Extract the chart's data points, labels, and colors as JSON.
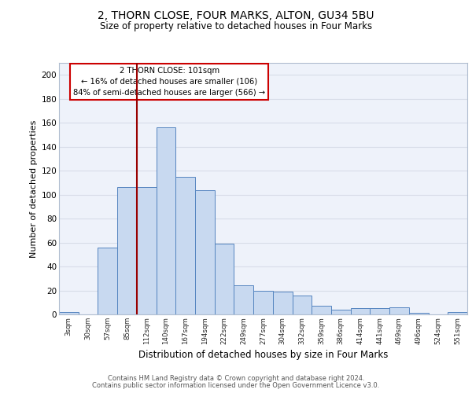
{
  "title1": "2, THORN CLOSE, FOUR MARKS, ALTON, GU34 5BU",
  "title2": "Size of property relative to detached houses in Four Marks",
  "xlabel": "Distribution of detached houses by size in Four Marks",
  "ylabel": "Number of detached properties",
  "bar_labels": [
    "3sqm",
    "30sqm",
    "57sqm",
    "85sqm",
    "112sqm",
    "140sqm",
    "167sqm",
    "194sqm",
    "222sqm",
    "249sqm",
    "277sqm",
    "304sqm",
    "332sqm",
    "359sqm",
    "386sqm",
    "414sqm",
    "441sqm",
    "469sqm",
    "496sqm",
    "524sqm",
    "551sqm"
  ],
  "bar_values": [
    2,
    0,
    56,
    106,
    106,
    156,
    115,
    104,
    59,
    24,
    20,
    19,
    16,
    7,
    4,
    5,
    5,
    6,
    1,
    0,
    2
  ],
  "bar_color": "#c8d9f0",
  "bar_edge_color": "#5585c0",
  "bg_color": "#eef2fa",
  "grid_color": "#d8dde8",
  "annotation_line1": "2 THORN CLOSE: 101sqm",
  "annotation_line2": "← 16% of detached houses are smaller (106)",
  "annotation_line3": "84% of semi-detached houses are larger (566) →",
  "annotation_box_color": "#ffffff",
  "annotation_box_edge_color": "#cc0000",
  "vline_color": "#990000",
  "footer1": "Contains HM Land Registry data © Crown copyright and database right 2024.",
  "footer2": "Contains public sector information licensed under the Open Government Licence v3.0.",
  "ylim": [
    0,
    210
  ],
  "yticks": [
    0,
    20,
    40,
    60,
    80,
    100,
    120,
    140,
    160,
    180,
    200
  ]
}
